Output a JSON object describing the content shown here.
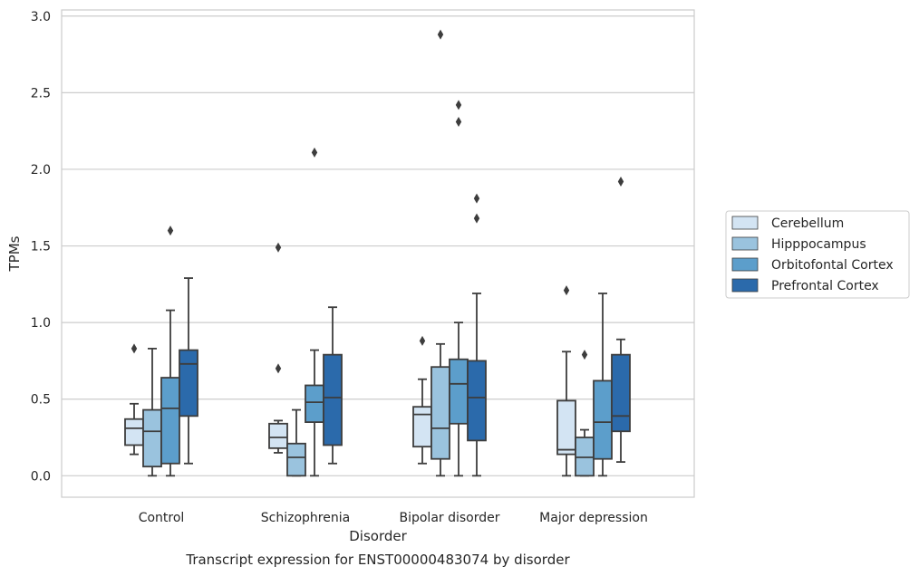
{
  "chart_data": {
    "type": "box",
    "title": "",
    "caption": "Transcript expression for ENST00000483074 by disorder",
    "xlabel": "Disorder",
    "ylabel": "TPMs",
    "ylim": [
      -0.14,
      3.04
    ],
    "yticks": [
      0.0,
      0.5,
      1.0,
      1.5,
      2.0,
      2.5,
      3.0
    ],
    "ytick_labels": [
      "0.0",
      "0.5",
      "1.0",
      "1.5",
      "2.0",
      "2.5",
      "3.0"
    ],
    "grid": "horizontal",
    "legend_position": "right",
    "categories": [
      "Control",
      "Schizophrenia",
      "Bipolar disorder",
      "Major depression"
    ],
    "series": [
      {
        "name": "Cerebellum",
        "color": "#d3e4f3",
        "boxes": [
          {
            "whisker_low": 0.14,
            "q1": 0.2,
            "median": 0.31,
            "q3": 0.37,
            "whisker_high": 0.47,
            "outliers": [
              0.83
            ]
          },
          {
            "whisker_low": 0.15,
            "q1": 0.18,
            "median": 0.25,
            "q3": 0.34,
            "whisker_high": 0.36,
            "outliers": [
              0.7,
              1.49
            ]
          },
          {
            "whisker_low": 0.08,
            "q1": 0.19,
            "median": 0.4,
            "q3": 0.45,
            "whisker_high": 0.63,
            "outliers": [
              0.88
            ]
          },
          {
            "whisker_low": 0.0,
            "q1": 0.14,
            "median": 0.17,
            "q3": 0.49,
            "whisker_high": 0.81,
            "outliers": [
              1.21
            ]
          }
        ]
      },
      {
        "name": "Hipppocampus",
        "color": "#9ac3de",
        "boxes": [
          {
            "whisker_low": 0.0,
            "q1": 0.06,
            "median": 0.29,
            "q3": 0.43,
            "whisker_high": 0.83,
            "outliers": []
          },
          {
            "whisker_low": 0.0,
            "q1": 0.0,
            "median": 0.12,
            "q3": 0.21,
            "whisker_high": 0.43,
            "outliers": []
          },
          {
            "whisker_low": 0.0,
            "q1": 0.11,
            "median": 0.31,
            "q3": 0.71,
            "whisker_high": 0.86,
            "outliers": [
              2.88
            ]
          },
          {
            "whisker_low": 0.0,
            "q1": 0.0,
            "median": 0.12,
            "q3": 0.25,
            "whisker_high": 0.3,
            "outliers": [
              0.79
            ]
          }
        ]
      },
      {
        "name": "Orbitofontal Cortex",
        "color": "#5c9ecb",
        "boxes": [
          {
            "whisker_low": 0.0,
            "q1": 0.08,
            "median": 0.44,
            "q3": 0.64,
            "whisker_high": 1.08,
            "outliers": [
              1.6
            ]
          },
          {
            "whisker_low": 0.0,
            "q1": 0.35,
            "median": 0.48,
            "q3": 0.59,
            "whisker_high": 0.82,
            "outliers": [
              2.11
            ]
          },
          {
            "whisker_low": 0.0,
            "q1": 0.34,
            "median": 0.6,
            "q3": 0.76,
            "whisker_high": 1.0,
            "outliers": [
              2.31,
              2.42
            ]
          },
          {
            "whisker_low": 0.0,
            "q1": 0.11,
            "median": 0.35,
            "q3": 0.62,
            "whisker_high": 1.19,
            "outliers": []
          }
        ]
      },
      {
        "name": "Prefrontal Cortex",
        "color": "#2b6aab",
        "boxes": [
          {
            "whisker_low": 0.08,
            "q1": 0.39,
            "median": 0.73,
            "q3": 0.82,
            "whisker_high": 1.29,
            "outliers": []
          },
          {
            "whisker_low": 0.08,
            "q1": 0.2,
            "median": 0.51,
            "q3": 0.79,
            "whisker_high": 1.1,
            "outliers": []
          },
          {
            "whisker_low": 0.0,
            "q1": 0.23,
            "median": 0.51,
            "q3": 0.75,
            "whisker_high": 1.19,
            "outliers": [
              1.68,
              1.81
            ]
          },
          {
            "whisker_low": 0.09,
            "q1": 0.29,
            "median": 0.39,
            "q3": 0.79,
            "whisker_high": 0.89,
            "outliers": [
              1.92
            ]
          }
        ]
      }
    ]
  }
}
